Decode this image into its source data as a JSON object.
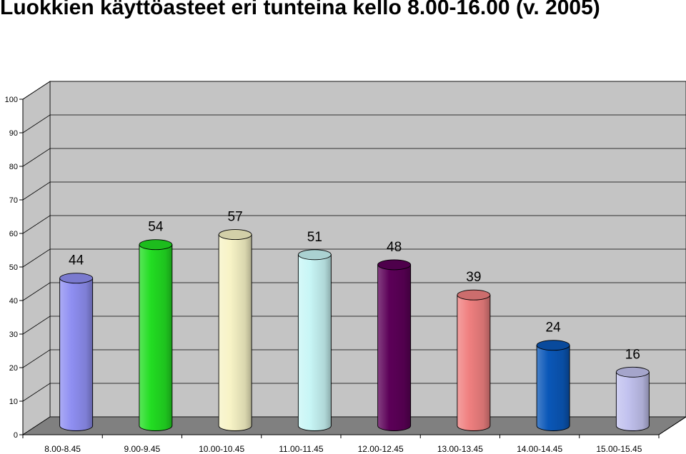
{
  "title": "Luokkien käyttöasteet eri tunteina kello 8.00-16.00 (v. 2005)",
  "chart_data": {
    "type": "bar",
    "style": "3d-cylinder",
    "title": "Luokkien käyttöasteet eri tunteina kello 8.00-16.00 (v. 2005)",
    "xlabel": "",
    "ylabel": "",
    "ylim": [
      0,
      100
    ],
    "yticks": [
      0,
      10,
      20,
      30,
      40,
      50,
      60,
      70,
      80,
      90,
      100
    ],
    "grid": true,
    "categories": [
      "8.00-8.45",
      "9.00-9.45",
      "10.00-10.45",
      "11.00-11.45",
      "12.00-12.45",
      "13.00-13.45",
      "14.00-14.45",
      "15.00-15.45"
    ],
    "values": [
      44,
      54,
      57,
      51,
      48,
      39,
      24,
      16
    ],
    "data_labels": [
      "44",
      "54",
      "57",
      "51",
      "48",
      "39",
      "24",
      "16"
    ],
    "colors": [
      "#8f8ff2",
      "#22dd22",
      "#f7f3c6",
      "#c8f6f6",
      "#5c0058",
      "#f08080",
      "#0a57b8",
      "#c2c2ef"
    ],
    "wall_color": "#c4c4c4",
    "floor_color": "#808080"
  }
}
